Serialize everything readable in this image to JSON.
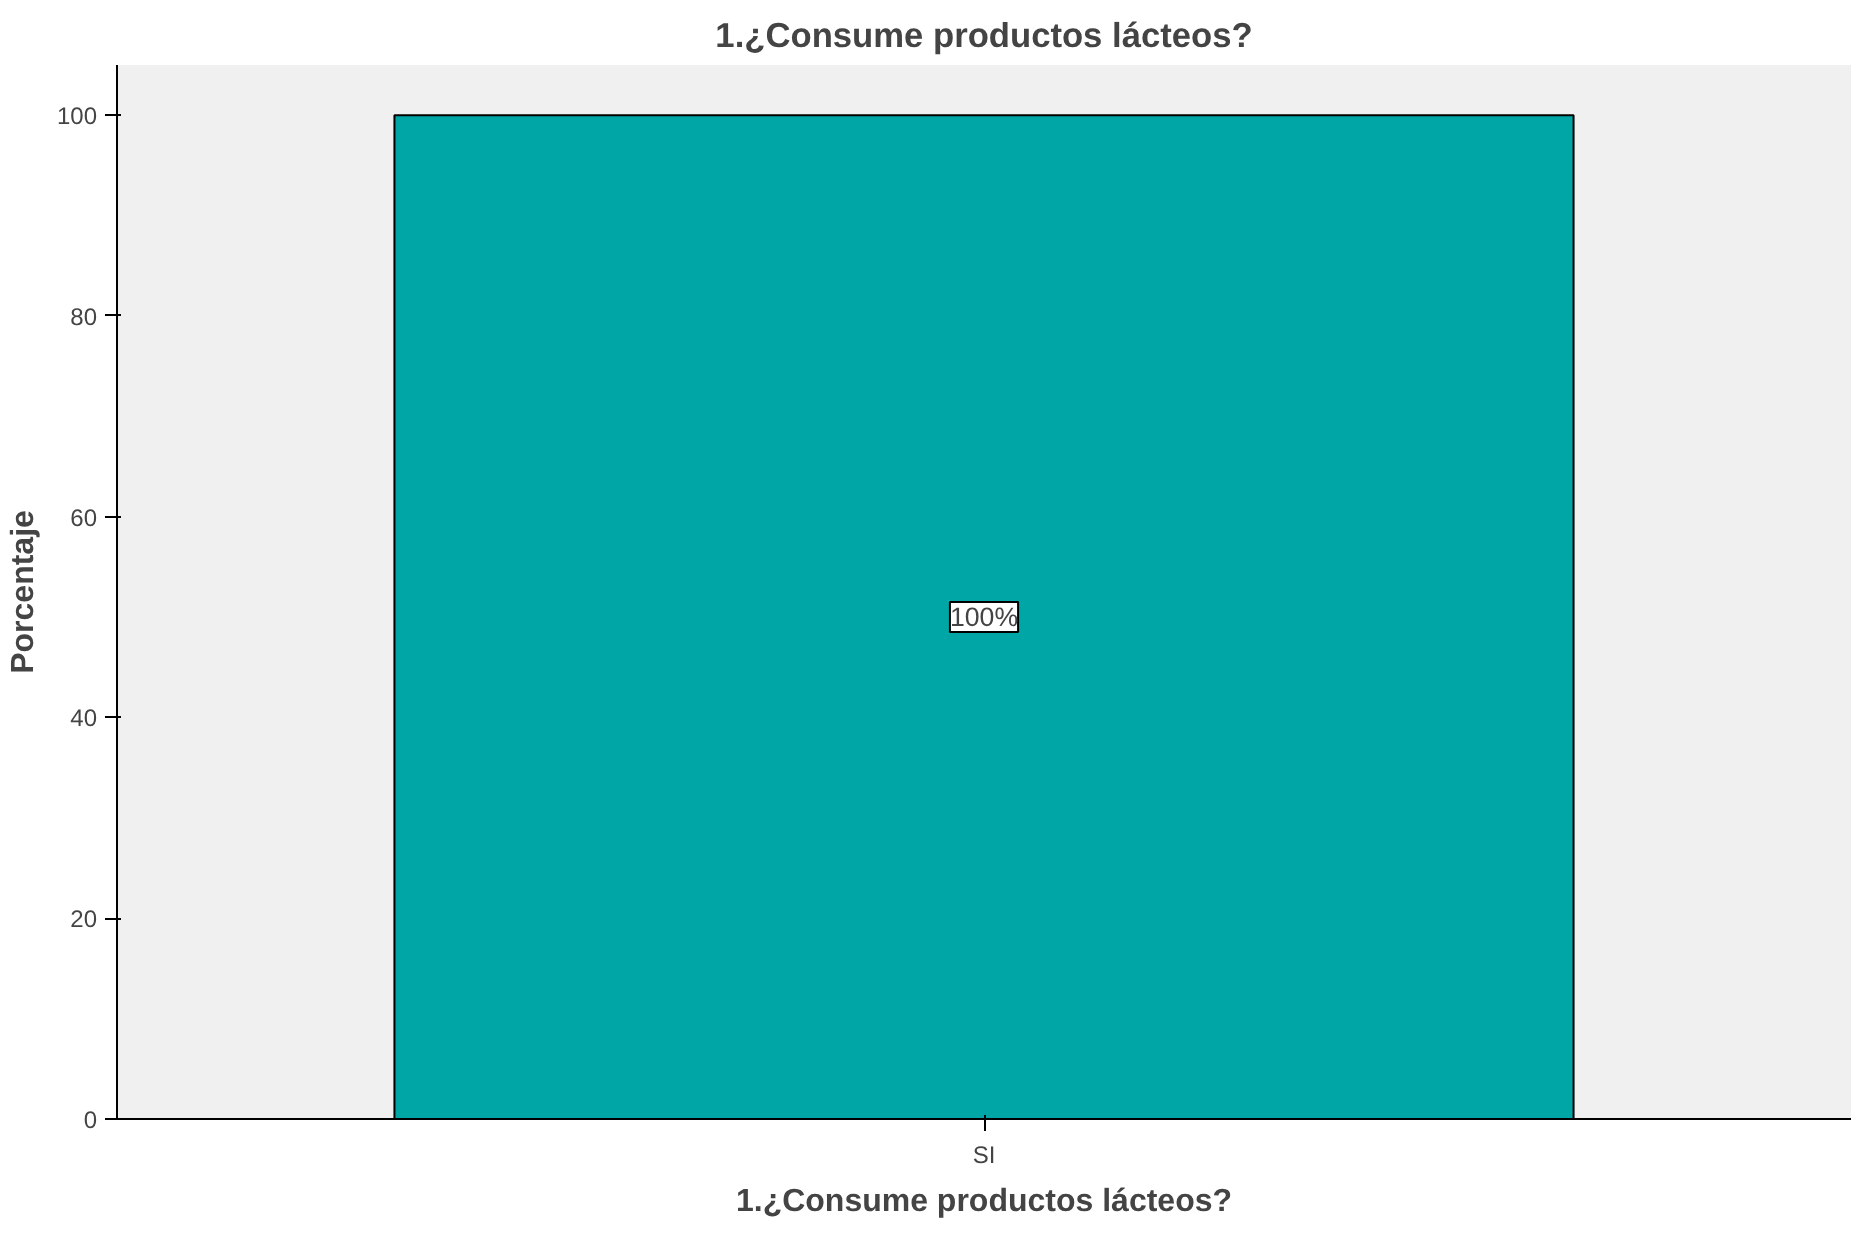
{
  "chart_data": {
    "type": "bar",
    "title": "1.¿Consume productos lácteos?",
    "xlabel": "1.¿Consume productos lácteos?",
    "ylabel": "Porcentaje",
    "categories": [
      "SI"
    ],
    "values": [
      100
    ],
    "value_labels": [
      "100%"
    ],
    "color": "#00a6a6",
    "ylim": [
      0,
      105
    ],
    "yticks": [
      0,
      20,
      40,
      60,
      80,
      100
    ],
    "grid": false
  }
}
